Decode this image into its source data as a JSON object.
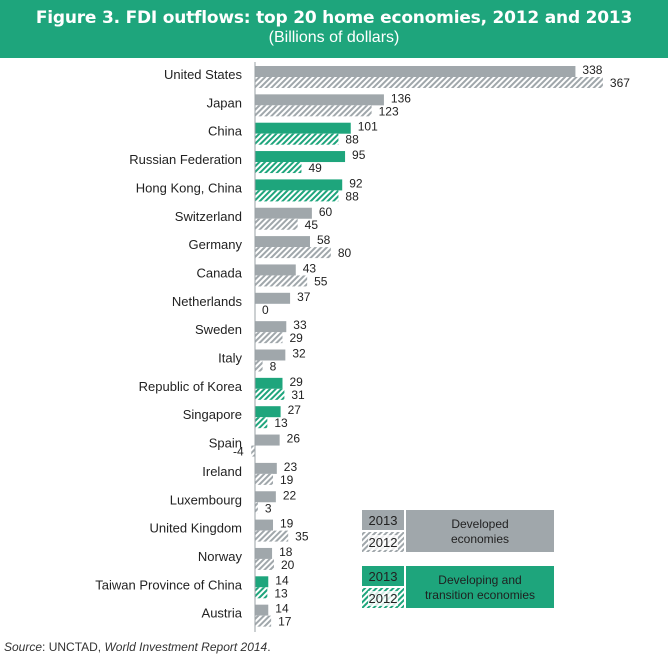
{
  "colors": {
    "developed": "#a0a7ab",
    "developing": "#1ea57c",
    "title_bg": "#1ea57c"
  },
  "chart_data": {
    "type": "bar",
    "orientation": "horizontal",
    "title": "Figure 3. FDI outflows: top 20 home economies, 2012 and 2013",
    "subtitle": "(Billions of dollars)",
    "xlim": [
      -4,
      367
    ],
    "categories": [
      "United States",
      "Japan",
      "China",
      "Russian Federation",
      "Hong Kong, China",
      "Switzerland",
      "Germany",
      "Canada",
      "Netherlands",
      "Sweden",
      "Italy",
      "Republic of Korea",
      "Singapore",
      "Spain",
      "Ireland",
      "Luxembourg",
      "United Kingdom",
      "Norway",
      "Taiwan Province of China",
      "Austria"
    ],
    "groups": [
      "developed",
      "developed",
      "developing",
      "developing",
      "developing",
      "developed",
      "developed",
      "developed",
      "developed",
      "developed",
      "developed",
      "developing",
      "developing",
      "developed",
      "developed",
      "developed",
      "developed",
      "developed",
      "developing",
      "developed"
    ],
    "series": [
      {
        "name": "2013",
        "values": [
          338,
          136,
          101,
          95,
          92,
          60,
          58,
          43,
          37,
          33,
          32,
          29,
          27,
          26,
          23,
          22,
          19,
          18,
          14,
          14
        ]
      },
      {
        "name": "2012",
        "values": [
          367,
          123,
          88,
          49,
          88,
          45,
          80,
          55,
          0,
          29,
          8,
          31,
          13,
          -4,
          19,
          3,
          35,
          20,
          13,
          17
        ]
      }
    ]
  },
  "legend": {
    "developed": {
      "label_2013": "2013",
      "label_2012": "2012",
      "text": "Developed economies"
    },
    "developing": {
      "label_2013": "2013",
      "label_2012": "2012",
      "text": "Developing and transition economies"
    }
  },
  "source": {
    "prefix": "Source",
    "middle": ": UNCTAD, ",
    "report": "World Investment Report 2014",
    "suffix": "."
  }
}
